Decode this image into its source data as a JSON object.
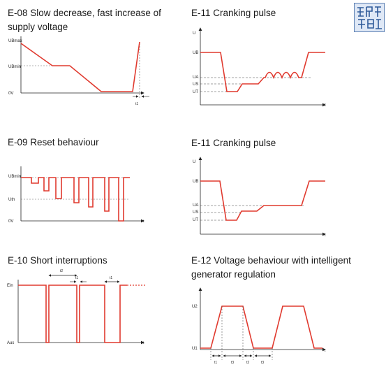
{
  "panels": {
    "e08": {
      "title": "E-08 Slow decrease, fast increase of supply voltage",
      "y_labels": [
        "UBmax",
        "UBmin",
        "0V"
      ],
      "x_marker": "t1"
    },
    "e11a": {
      "title": "E-11 Cranking pulse",
      "y_labels": [
        "U",
        "UB",
        "UA",
        "US",
        "UT"
      ],
      "x_label": "t"
    },
    "e09": {
      "title": "E-09 Reset behaviour",
      "y_labels": [
        "UBmin",
        "Uth",
        "0V"
      ],
      "x_label": "t"
    },
    "e11b": {
      "title": "E-11 Cranking pulse",
      "y_labels": [
        "U",
        "UB",
        "UA",
        "US",
        "UT"
      ],
      "x_label": "t"
    },
    "e10": {
      "title": "E-10 Short interruptions",
      "y_labels": [
        "Ein",
        "Aus"
      ],
      "x_label": "t",
      "t_labels": [
        "t2",
        "t1",
        "t1"
      ]
    },
    "e12": {
      "title": "E-12 Voltage behaviour with intelligent generator regulation",
      "y_labels": [
        "U2",
        "U1"
      ],
      "x_label": "t",
      "t_labels": [
        "t1",
        "t3",
        "t2",
        "t3"
      ]
    }
  },
  "colors": {
    "signal": "#e03a2f",
    "axis": "#222222",
    "dashed": "#555555"
  },
  "logo": {
    "icon": "seal-logo"
  }
}
